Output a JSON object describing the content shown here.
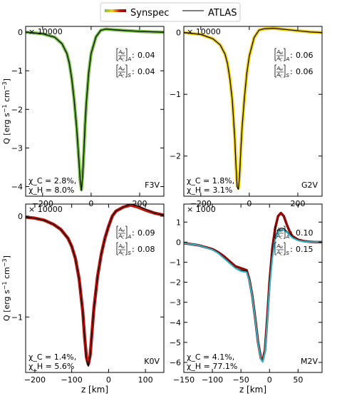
{
  "legend": {
    "items": [
      {
        "label": "Synspec",
        "kind": "gradient"
      },
      {
        "label": "ATLAS",
        "kind": "line",
        "color": "#000000"
      }
    ]
  },
  "chart_data": [
    {
      "type": "line",
      "star": "F3V",
      "scale_label": "× 10000",
      "ylabel": "Q [erg s$^{-1}$ cm$^{-3}$]",
      "xlabel": "",
      "xlim": [
        -270,
        300
      ],
      "ylim": [
        -4.25,
        0.15
      ],
      "xticks": [
        -200,
        0,
        200
      ],
      "yticks": [
        0,
        -1,
        -2,
        -3,
        -4
      ],
      "chi_c": "χ_C = 2.8%,",
      "chi_h": "χ_H = 8.0%",
      "ratio_a": "0.04",
      "ratio_s": "0.04",
      "series": [
        {
          "name": "Synspec",
          "color": "#76c043",
          "width": 4.5,
          "x": [
            -270,
            -200,
            -150,
            -120,
            -100,
            -90,
            -80,
            -70,
            -60,
            -50,
            -45,
            -40,
            -35,
            -30,
            -25,
            -20,
            -10,
            0,
            20,
            40,
            60,
            100,
            150,
            200,
            250,
            300
          ],
          "y": [
            0,
            -0.04,
            -0.13,
            -0.3,
            -0.55,
            -0.8,
            -1.2,
            -1.75,
            -2.45,
            -3.35,
            -3.85,
            -4.08,
            -3.7,
            -3.1,
            -2.4,
            -1.85,
            -1.05,
            -0.55,
            -0.12,
            0.05,
            0.08,
            0.06,
            0.04,
            0.02,
            0.01,
            0
          ]
        },
        {
          "name": "ATLAS",
          "color": "#000000",
          "width": 1.2,
          "x": [
            -270,
            -200,
            -150,
            -120,
            -100,
            -90,
            -80,
            -70,
            -60,
            -50,
            -45,
            -40,
            -35,
            -30,
            -25,
            -20,
            -10,
            0,
            20,
            40,
            60,
            100,
            150,
            200,
            250,
            300
          ],
          "y": [
            0,
            -0.04,
            -0.13,
            -0.3,
            -0.55,
            -0.8,
            -1.2,
            -1.75,
            -2.45,
            -3.35,
            -3.85,
            -4.1,
            -3.72,
            -3.1,
            -2.4,
            -1.85,
            -1.05,
            -0.55,
            -0.12,
            0.05,
            0.08,
            0.06,
            0.04,
            0.02,
            0.01,
            0
          ]
        }
      ]
    },
    {
      "type": "line",
      "star": "G2V",
      "scale_label": "× 10000",
      "ylabel": "",
      "xlabel": "",
      "xlim": [
        -270,
        300
      ],
      "ylim": [
        -2.65,
        0.1
      ],
      "xticks": [
        -200,
        0,
        200
      ],
      "yticks": [
        0,
        -1,
        -2
      ],
      "chi_c": "χ_C = 1.8%,",
      "chi_h": "χ_H = 3.1%",
      "ratio_a": "0.06",
      "ratio_s": "0.06",
      "series": [
        {
          "name": "Synspec",
          "color": "#f2d01a",
          "width": 4.5,
          "x": [
            -270,
            -200,
            -150,
            -120,
            -100,
            -90,
            -80,
            -70,
            -60,
            -55,
            -50,
            -45,
            -40,
            -35,
            -30,
            -20,
            -10,
            0,
            20,
            40,
            60,
            100,
            150,
            200,
            250,
            300
          ],
          "y": [
            0,
            -0.03,
            -0.1,
            -0.2,
            -0.35,
            -0.5,
            -0.75,
            -1.1,
            -1.7,
            -2.15,
            -2.48,
            -2.52,
            -2.3,
            -1.9,
            -1.55,
            -1.05,
            -0.65,
            -0.38,
            -0.08,
            0.04,
            0.06,
            0.07,
            0.05,
            0.03,
            0.01,
            0
          ]
        },
        {
          "name": "ATLAS",
          "color": "#000000",
          "width": 1.2,
          "x": [
            -270,
            -200,
            -150,
            -120,
            -100,
            -90,
            -80,
            -70,
            -60,
            -55,
            -50,
            -45,
            -40,
            -35,
            -30,
            -20,
            -10,
            0,
            20,
            40,
            60,
            100,
            150,
            200,
            250,
            300
          ],
          "y": [
            0,
            -0.03,
            -0.1,
            -0.2,
            -0.35,
            -0.5,
            -0.75,
            -1.1,
            -1.7,
            -2.15,
            -2.5,
            -2.54,
            -2.32,
            -1.9,
            -1.55,
            -1.05,
            -0.65,
            -0.38,
            -0.08,
            0.04,
            0.06,
            0.07,
            0.05,
            0.03,
            0.01,
            0
          ]
        }
      ]
    },
    {
      "type": "line",
      "star": "K0V",
      "scale_label": "× 10000",
      "ylabel": "Q [erg s$^{-1}$ cm$^{-3}$]",
      "xlabel": "z [km]",
      "xlim": [
        -225,
        150
      ],
      "ylim": [
        -1.55,
        0.12
      ],
      "xticks": [
        -200,
        -100,
        0,
        100
      ],
      "yticks": [
        0,
        -1
      ],
      "chi_c": "χ_C = 1.4%,",
      "chi_h": "χ_H = 5.6%",
      "ratio_a": "0.09",
      "ratio_s": "0.08",
      "series": [
        {
          "name": "Synspec",
          "color": "#c0190e",
          "width": 4.5,
          "x": [
            -225,
            -200,
            -175,
            -150,
            -130,
            -110,
            -100,
            -90,
            -80,
            -70,
            -65,
            -60,
            -55,
            -50,
            -45,
            -40,
            -30,
            -20,
            -10,
            0,
            10,
            20,
            40,
            60,
            80,
            100,
            125,
            150
          ],
          "y": [
            -0.01,
            -0.02,
            -0.04,
            -0.08,
            -0.13,
            -0.22,
            -0.3,
            -0.42,
            -0.62,
            -0.95,
            -1.2,
            -1.4,
            -1.47,
            -1.38,
            -1.15,
            -0.92,
            -0.6,
            -0.38,
            -0.22,
            -0.1,
            0.0,
            0.05,
            0.09,
            0.11,
            0.09,
            0.06,
            0.03,
            0.01
          ]
        },
        {
          "name": "ATLAS",
          "color": "#000000",
          "width": 1.2,
          "x": [
            -225,
            -200,
            -175,
            -150,
            -130,
            -110,
            -100,
            -90,
            -80,
            -70,
            -65,
            -60,
            -55,
            -50,
            -45,
            -40,
            -30,
            -20,
            -10,
            0,
            10,
            20,
            40,
            60,
            80,
            100,
            125,
            150
          ],
          "y": [
            -0.01,
            -0.02,
            -0.04,
            -0.08,
            -0.13,
            -0.22,
            -0.3,
            -0.42,
            -0.62,
            -0.95,
            -1.2,
            -1.42,
            -1.49,
            -1.39,
            -1.15,
            -0.92,
            -0.6,
            -0.38,
            -0.22,
            -0.1,
            0.0,
            0.05,
            0.09,
            0.12,
            0.1,
            0.07,
            0.03,
            0.01
          ]
        }
      ]
    },
    {
      "type": "line",
      "star": "M2V",
      "scale_label": "× 1000",
      "ylabel": "",
      "xlabel": "z [km]",
      "xlim": [
        -150,
        92
      ],
      "ylim": [
        -6.5,
        1.9
      ],
      "xticks": [
        -150,
        -100,
        -50,
        0,
        50
      ],
      "yticks": [
        1,
        0,
        -1,
        -2,
        -3,
        -4,
        -5,
        -6
      ],
      "chi_c": "χ_C = 4.1%,",
      "chi_h": "χ_H = 77.1%",
      "ratio_a": "0.10",
      "ratio_s": "0.15",
      "series": [
        {
          "name": "Synspec",
          "color": "#8b0a0a",
          "width": 3.5,
          "x": [
            -150,
            -125,
            -100,
            -90,
            -80,
            -70,
            -60,
            -50,
            -40,
            -35,
            -30,
            -25,
            -20,
            -15,
            -12,
            -8,
            -4,
            0,
            5,
            10,
            15,
            20,
            25,
            30,
            35,
            40,
            50,
            60,
            70,
            80,
            92
          ],
          "y": [
            -0.05,
            -0.15,
            -0.35,
            -0.5,
            -0.7,
            -0.95,
            -1.2,
            -1.3,
            -1.4,
            -1.9,
            -2.7,
            -3.8,
            -5.0,
            -5.8,
            -5.9,
            -5.4,
            -3.8,
            -2.0,
            -0.3,
            0.7,
            1.3,
            1.45,
            1.3,
            0.9,
            0.55,
            0.3,
            0.12,
            0.05,
            0.02,
            0.0,
            0.0
          ]
        },
        {
          "name": "ATLAS",
          "color": "#000000",
          "width": 1.2,
          "x": [
            -150,
            -125,
            -100,
            -90,
            -80,
            -70,
            -60,
            -50,
            -40,
            -35,
            -30,
            -25,
            -20,
            -15,
            -12,
            -8,
            -4,
            0,
            5,
            10,
            15,
            20,
            25,
            30,
            35,
            40,
            50,
            60,
            70,
            80,
            92
          ],
          "y": [
            -0.05,
            -0.15,
            -0.38,
            -0.55,
            -0.8,
            -1.05,
            -1.3,
            -1.4,
            -1.45,
            -1.9,
            -2.7,
            -3.8,
            -5.0,
            -5.8,
            -5.95,
            -5.45,
            -3.9,
            -2.1,
            -0.6,
            0.25,
            0.6,
            0.7,
            0.68,
            0.55,
            0.4,
            0.25,
            0.1,
            0.04,
            0.01,
            0.0,
            0.0
          ]
        },
        {
          "name": "Synspec",
          "color": "#2bb5c5",
          "width": 2.0,
          "x": [
            -150,
            -125,
            -100,
            -90,
            -80,
            -70,
            -60,
            -50,
            -40,
            -35,
            -30,
            -25,
            -20,
            -15,
            -12,
            -8,
            -4,
            0,
            5,
            10,
            15,
            20,
            25,
            30,
            35,
            40,
            50,
            60,
            70,
            80,
            92
          ],
          "y": [
            -0.05,
            -0.15,
            -0.38,
            -0.55,
            -0.8,
            -1.05,
            -1.3,
            -1.45,
            -1.5,
            -1.95,
            -2.75,
            -3.85,
            -5.05,
            -5.85,
            -5.98,
            -5.5,
            -4.0,
            -2.3,
            -0.8,
            0.15,
            0.5,
            0.62,
            0.6,
            0.5,
            0.36,
            0.22,
            0.08,
            0.03,
            0.01,
            0.0,
            0.0
          ]
        }
      ]
    }
  ]
}
